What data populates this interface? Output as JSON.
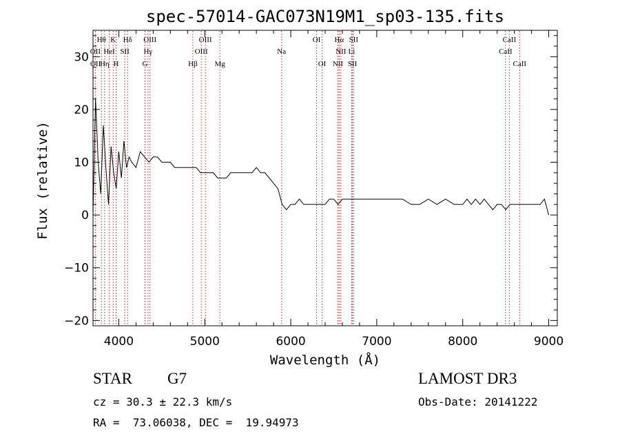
{
  "chart_data": {
    "type": "line",
    "title": "spec-57014-GAC073N19M1_sp03-135.fits",
    "xlabel": "Wavelength (Å)",
    "ylabel": "Flux (relative)",
    "xlim": [
      3700,
      9100
    ],
    "ylim": [
      -21,
      35
    ],
    "x_ticks": [
      4000,
      5000,
      6000,
      7000,
      8000,
      9000
    ],
    "x_tick_labels": [
      "4000",
      "5000",
      "6000",
      "7000",
      "8000",
      "9000"
    ],
    "y_ticks": [
      -20,
      -10,
      0,
      10,
      20,
      30
    ],
    "y_tick_labels": [
      "−20",
      "−10",
      "0",
      "10",
      "20",
      "30"
    ],
    "series": [
      {
        "name": "spectrum",
        "x": [
          3700,
          3730,
          3760,
          3790,
          3820,
          3850,
          3880,
          3910,
          3940,
          3970,
          4000,
          4030,
          4060,
          4090,
          4120,
          4150,
          4200,
          4250,
          4300,
          4350,
          4400,
          4450,
          4500,
          4550,
          4600,
          4650,
          4700,
          4750,
          4800,
          4850,
          4900,
          4950,
          5000,
          5050,
          5100,
          5150,
          5200,
          5250,
          5300,
          5350,
          5400,
          5450,
          5500,
          5550,
          5600,
          5650,
          5700,
          5750,
          5800,
          5850,
          5900,
          5950,
          6000,
          6050,
          6100,
          6150,
          6200,
          6250,
          6300,
          6350,
          6400,
          6450,
          6500,
          6550,
          6600,
          6650,
          6700,
          6750,
          6800,
          6900,
          7000,
          7100,
          7200,
          7300,
          7400,
          7500,
          7600,
          7700,
          7800,
          7900,
          8000,
          8050,
          8100,
          8150,
          8200,
          8250,
          8300,
          8350,
          8400,
          8450,
          8500,
          8550,
          8600,
          8650,
          8700,
          8750,
          8800,
          8850,
          8900,
          8950,
          9000
        ],
        "y": [
          0,
          22,
          10,
          4,
          17,
          9,
          2,
          13,
          8,
          5,
          12,
          7,
          14,
          9,
          11,
          10,
          9,
          12,
          11,
          10,
          11,
          11,
          10,
          10,
          10,
          9,
          9,
          9,
          9,
          9,
          9,
          8,
          8,
          8,
          8,
          7,
          7,
          7,
          8,
          8,
          8,
          8,
          8,
          8,
          9,
          8,
          8,
          7,
          6,
          5,
          2,
          1,
          2,
          2,
          3,
          2,
          2,
          2,
          2,
          2,
          2,
          3,
          3,
          2,
          3,
          3,
          3,
          3,
          3,
          3,
          3,
          3,
          3,
          3,
          2,
          2,
          3,
          2,
          3,
          2,
          2,
          3,
          2,
          3,
          2,
          3,
          2,
          1,
          2,
          2,
          1,
          2,
          2,
          2,
          2,
          2,
          2,
          2,
          2,
          3,
          0
        ]
      }
    ],
    "annotations": [
      {
        "label": "Hθ",
        "x": 3798,
        "row": 1
      },
      {
        "label": "K",
        "x": 3934,
        "row": 1
      },
      {
        "label": "Hδ",
        "x": 4102,
        "row": 1
      },
      {
        "label": "OIII",
        "x": 4363,
        "row": 1
      },
      {
        "label": "OIII",
        "x": 5007,
        "row": 1
      },
      {
        "label": "OI",
        "x": 6300,
        "row": 1
      },
      {
        "label": "Hα",
        "x": 6563,
        "row": 1
      },
      {
        "label": "SII",
        "x": 6731,
        "row": 1
      },
      {
        "label": "CaII",
        "x": 8542,
        "row": 1
      },
      {
        "label": "OII",
        "x": 3727,
        "row": 2
      },
      {
        "label": "HeI",
        "x": 3889,
        "row": 2
      },
      {
        "label": "SII",
        "x": 4069,
        "row": 2
      },
      {
        "label": "Hγ",
        "x": 4340,
        "row": 2
      },
      {
        "label": "OIII",
        "x": 4959,
        "row": 2
      },
      {
        "label": "Na",
        "x": 5893,
        "row": 2
      },
      {
        "label": "NII",
        "x": 6583,
        "row": 2
      },
      {
        "label": "Li",
        "x": 6708,
        "row": 2
      },
      {
        "label": "CaII",
        "x": 8498,
        "row": 2
      },
      {
        "label": "OII",
        "x": 3729,
        "row": 3
      },
      {
        "label": "Hη",
        "x": 3835,
        "row": 3
      },
      {
        "label": "H",
        "x": 3968,
        "row": 3
      },
      {
        "label": "G",
        "x": 4305,
        "row": 3
      },
      {
        "label": "Hβ",
        "x": 4861,
        "row": 3
      },
      {
        "label": "Mg",
        "x": 5175,
        "row": 3
      },
      {
        "label": "OI",
        "x": 6364,
        "row": 3
      },
      {
        "label": "NII",
        "x": 6548,
        "row": 3
      },
      {
        "label": "SII",
        "x": 6717,
        "row": 3
      },
      {
        "label": "CaII",
        "x": 8662,
        "row": 3
      }
    ],
    "line_markers_x": [
      3727,
      3798,
      3835,
      3889,
      3934,
      3968,
      4069,
      4102,
      4305,
      4340,
      4363,
      4861,
      4959,
      5007,
      5175,
      5893,
      6300,
      6364,
      6548,
      6563,
      6583,
      6708,
      6717,
      6731,
      8498,
      8542,
      8662
    ],
    "grid": false,
    "legend": "none"
  },
  "info": {
    "object_type": "STAR",
    "subclass": "G7",
    "survey": "LAMOST DR3",
    "cz_line": "cz = 30.3 ± 22.3 km/s",
    "obs_date_line": "Obs-Date: 20141222",
    "radec_line": "RA =  73.06038, DEC =  19.94973"
  }
}
